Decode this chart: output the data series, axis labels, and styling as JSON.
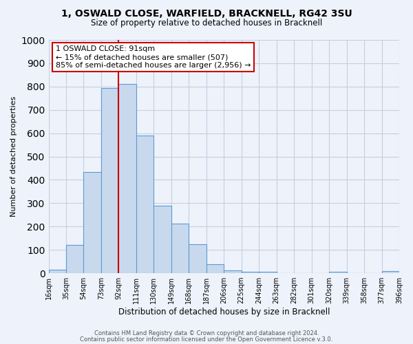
{
  "title1": "1, OSWALD CLOSE, WARFIELD, BRACKNELL, RG42 3SU",
  "title2": "Size of property relative to detached houses in Bracknell",
  "xlabel": "Distribution of detached houses by size in Bracknell",
  "ylabel": "Number of detached properties",
  "bar_color": "#c9d9ed",
  "bar_edge_color": "#5b9bd5",
  "bin_labels": [
    "16sqm",
    "35sqm",
    "54sqm",
    "73sqm",
    "92sqm",
    "111sqm",
    "130sqm",
    "149sqm",
    "168sqm",
    "187sqm",
    "206sqm",
    "225sqm",
    "244sqm",
    "263sqm",
    "282sqm",
    "301sqm",
    "320sqm",
    "339sqm",
    "358sqm",
    "377sqm",
    "396sqm"
  ],
  "bar_heights": [
    15,
    120,
    435,
    795,
    810,
    590,
    290,
    213,
    125,
    40,
    13,
    7,
    5,
    0,
    0,
    0,
    7,
    0,
    0,
    8
  ],
  "bin_edges": [
    16,
    35,
    54,
    73,
    92,
    111,
    130,
    149,
    168,
    187,
    206,
    225,
    244,
    263,
    282,
    301,
    320,
    339,
    358,
    377,
    396
  ],
  "ylim": [
    0,
    1000
  ],
  "yticks": [
    0,
    100,
    200,
    300,
    400,
    500,
    600,
    700,
    800,
    900,
    1000
  ],
  "vline_x": 92,
  "vline_color": "#cc0000",
  "annotation_title": "1 OSWALD CLOSE: 91sqm",
  "annotation_line1": "← 15% of detached houses are smaller (507)",
  "annotation_line2": "85% of semi-detached houses are larger (2,956) →",
  "annotation_box_color": "#ffffff",
  "annotation_box_edge": "#cc0000",
  "background_color": "#eef2fb",
  "grid_color": "#c5cfe0",
  "footer1": "Contains HM Land Registry data © Crown copyright and database right 2024.",
  "footer2": "Contains public sector information licensed under the Open Government Licence v.3.0."
}
